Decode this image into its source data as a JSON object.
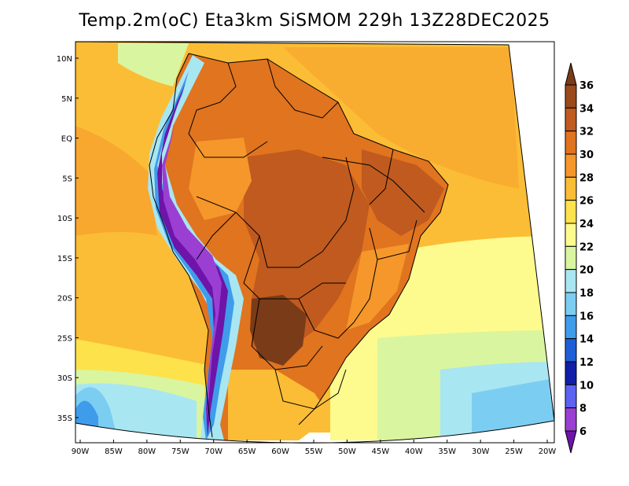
{
  "title": "Temp.2m(oC) Eta3km SiSMOM 229h 13Z28DEC2025",
  "map": {
    "lat_ticks": [
      "10N",
      "5N",
      "EQ",
      "5S",
      "10S",
      "15S",
      "20S",
      "25S",
      "30S",
      "35S"
    ],
    "lon_ticks": [
      "90W",
      "85W",
      "80W",
      "75W",
      "70W",
      "65W",
      "60W",
      "55W",
      "50W",
      "45W",
      "40W",
      "35W",
      "30W",
      "25W",
      "20W"
    ],
    "variable": "2 m temperature",
    "units": "oC"
  },
  "colorbar": {
    "labels": [
      "36",
      "34",
      "32",
      "30",
      "28",
      "26",
      "24",
      "22",
      "20",
      "18",
      "16",
      "14",
      "12",
      "10",
      "8",
      "6"
    ],
    "colors": [
      "#7a3b18",
      "#9b4a1c",
      "#c05a1e",
      "#e0741f",
      "#f5972a",
      "#fbbd35",
      "#fde24c",
      "#fdfa8e",
      "#d9f5a0",
      "#a8e6f2",
      "#7ccdf2",
      "#3f9cea",
      "#1e5fd8",
      "#101ea8",
      "#5b63f0",
      "#9b3fd3",
      "#6e14a8"
    ]
  }
}
